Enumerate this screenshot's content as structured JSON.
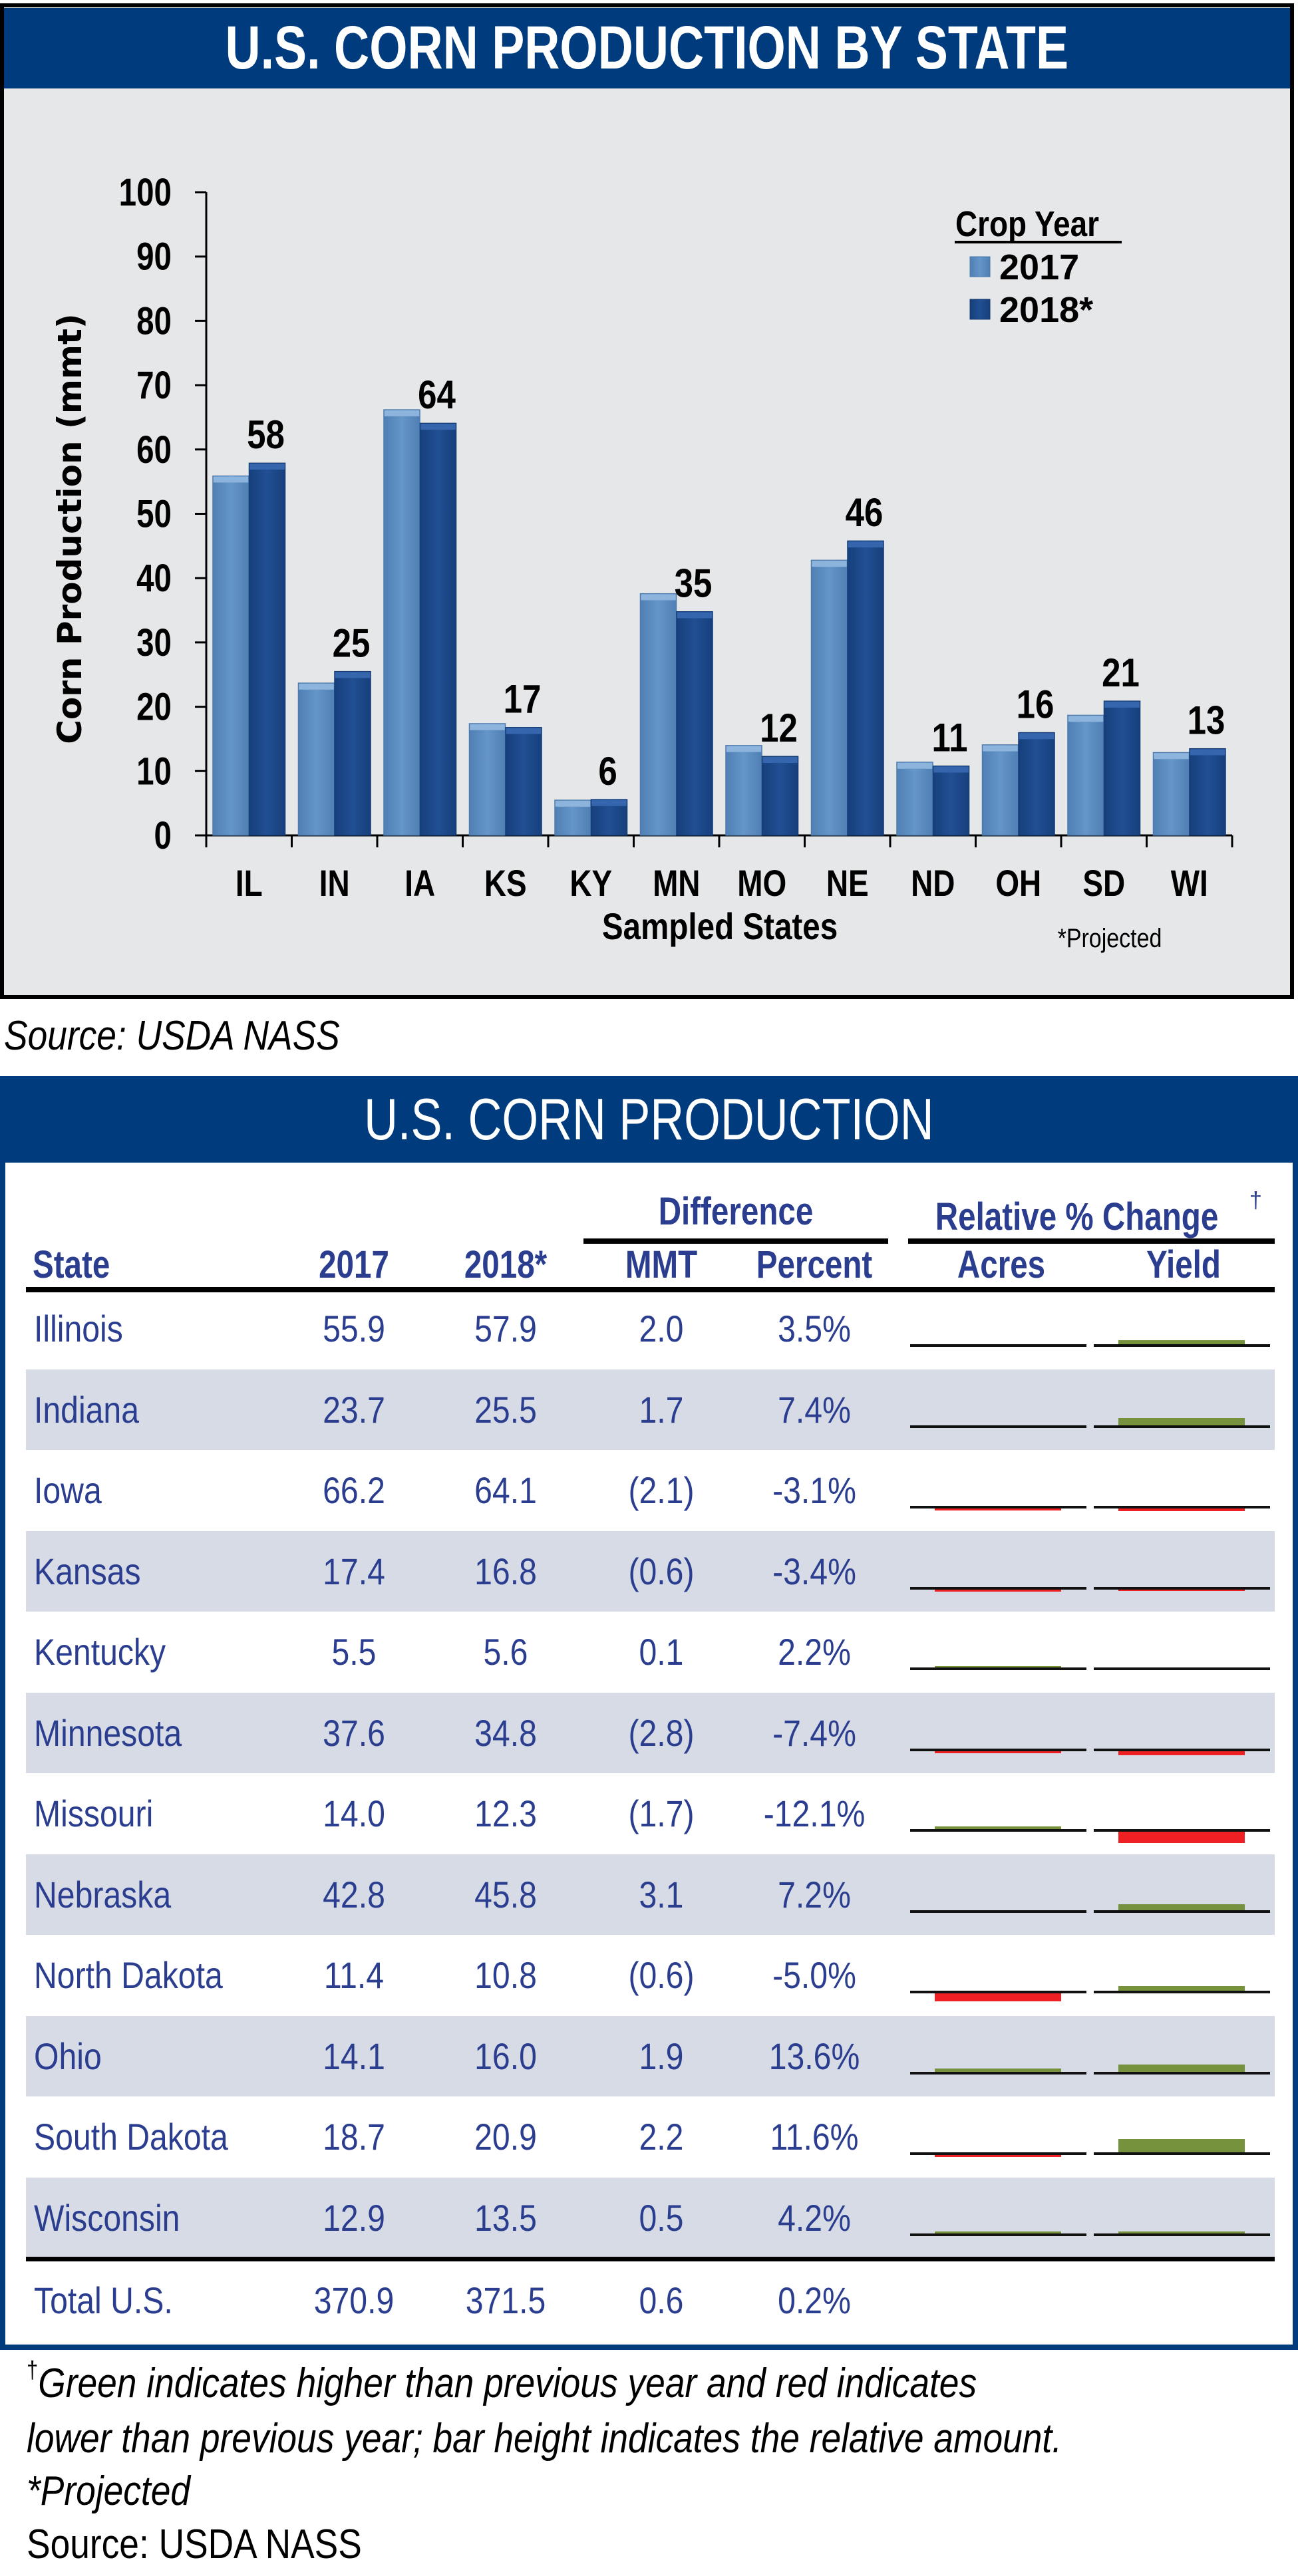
{
  "chart_panel": {
    "title": "U.S. CORN PRODUCTION BY STATE",
    "source": "Source: USDA NASS"
  },
  "chart_data": {
    "type": "bar",
    "title": "U.S. CORN PRODUCTION BY STATE",
    "xlabel": "Sampled States",
    "ylabel": "Corn Production (mmt)",
    "ylim": [
      0,
      100
    ],
    "yticks": [
      0,
      10,
      20,
      30,
      40,
      50,
      60,
      70,
      80,
      90,
      100
    ],
    "grid": false,
    "categories": [
      "IL",
      "IN",
      "IA",
      "KS",
      "KY",
      "MN",
      "MO",
      "NE",
      "ND",
      "OH",
      "SD",
      "WI"
    ],
    "series": [
      {
        "name": "2017",
        "color": "#5f8fc3",
        "values": [
          55.9,
          23.7,
          66.2,
          17.4,
          5.5,
          37.6,
          14.0,
          42.8,
          11.4,
          14.1,
          18.7,
          12.9
        ]
      },
      {
        "name": "2018*",
        "color": "#1c4a8c",
        "values": [
          57.9,
          25.5,
          64.1,
          16.8,
          5.6,
          34.8,
          12.3,
          45.8,
          10.8,
          16.0,
          20.9,
          13.5
        ]
      }
    ],
    "data_labels": [
      "58",
      "25",
      "64",
      "17",
      "6",
      "35",
      "12",
      "46",
      "11",
      "16",
      "21",
      "13"
    ],
    "legend": {
      "title": "Crop Year",
      "entries": [
        "2017",
        "2018*"
      ],
      "position": "top-right"
    },
    "annotation": "*Projected"
  },
  "table": {
    "title": "U.S. CORN PRODUCTION",
    "group_headers": {
      "difference": "Difference",
      "relative": "Relative % Change",
      "relative_mark": "†"
    },
    "columns": [
      "State",
      "2017",
      "2018*",
      "MMT",
      "Percent",
      "Acres",
      "Yield"
    ],
    "colors": {
      "higher": "#76923c",
      "lower": "#ee2024"
    },
    "rows": [
      {
        "state": "Illinois",
        "y2017": "55.9",
        "y2018": "57.9",
        "mmt": "2.0",
        "percent": "3.5%",
        "acres": 0.0,
        "yield": 0.3
      },
      {
        "state": "Indiana",
        "y2017": "23.7",
        "y2018": "25.5",
        "mmt": "1.7",
        "percent": "7.4%",
        "acres": 0.0,
        "yield": 0.55
      },
      {
        "state": "Iowa",
        "y2017": "66.2",
        "y2018": "64.1",
        "mmt": "(2.1)",
        "percent": "-3.1%",
        "acres": -0.1,
        "yield": -0.2
      },
      {
        "state": "Kansas",
        "y2017": "17.4",
        "y2018": "16.8",
        "mmt": "(0.6)",
        "percent": "-3.4%",
        "acres": -0.15,
        "yield": -0.12
      },
      {
        "state": "Kentucky",
        "y2017": "5.5",
        "y2018": "5.6",
        "mmt": "0.1",
        "percent": "2.2%",
        "acres": 0.12,
        "yield": 0.0
      },
      {
        "state": "Minnesota",
        "y2017": "37.6",
        "y2018": "34.8",
        "mmt": "(2.8)",
        "percent": "-7.4%",
        "acres": -0.15,
        "yield": -0.3
      },
      {
        "state": "Missouri",
        "y2017": "14.0",
        "y2018": "12.3",
        "mmt": "(1.7)",
        "percent": "-12.1%",
        "acres": 0.2,
        "yield": -0.85
      },
      {
        "state": "Nebraska",
        "y2017": "42.8",
        "y2018": "45.8",
        "mmt": "3.1",
        "percent": "7.2%",
        "acres": 0.0,
        "yield": 0.45
      },
      {
        "state": "North Dakota",
        "y2017": "11.4",
        "y2018": "10.8",
        "mmt": "(0.6)",
        "percent": "-5.0%",
        "acres": -0.6,
        "yield": 0.35
      },
      {
        "state": "Ohio",
        "y2017": "14.1",
        "y2018": "16.0",
        "mmt": "1.9",
        "percent": "13.6%",
        "acres": 0.25,
        "yield": 0.55
      },
      {
        "state": "South Dakota",
        "y2017": "18.7",
        "y2018": "20.9",
        "mmt": "2.2",
        "percent": "11.6%",
        "acres": -0.12,
        "yield": 1.0
      },
      {
        "state": "Wisconsin",
        "y2017": "12.9",
        "y2018": "13.5",
        "mmt": "0.5",
        "percent": "4.2%",
        "acres": 0.15,
        "yield": 0.1
      }
    ],
    "total": {
      "state": "Total U.S.",
      "y2017": "370.9",
      "y2018": "371.5",
      "mmt": "0.6",
      "percent": "0.2%"
    }
  },
  "footnotes": {
    "dagger_mark": "†",
    "line1": "Green indicates higher than previous year and red indicates",
    "line2": "lower than previous year; bar height indicates the relative amount.",
    "projected": "*Projected",
    "source": "Source: USDA NASS"
  }
}
